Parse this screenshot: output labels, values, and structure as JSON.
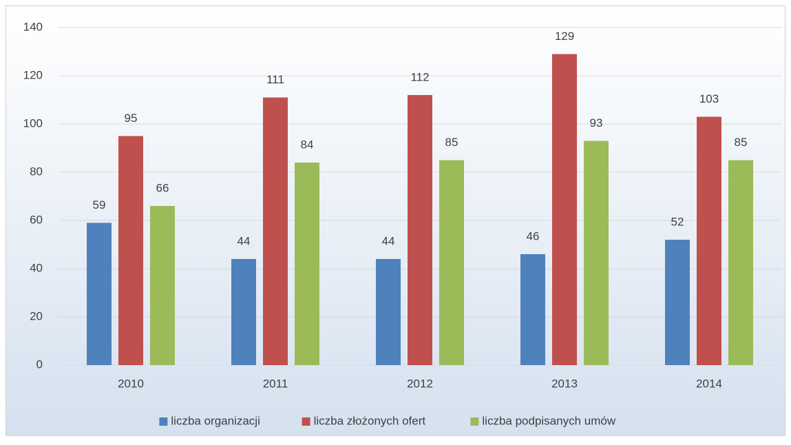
{
  "chart_data": {
    "type": "bar",
    "categories": [
      "2010",
      "2011",
      "2012",
      "2013",
      "2014"
    ],
    "series": [
      {
        "name": "liczba organizacji",
        "color": "#4f81bd",
        "values": [
          59,
          44,
          44,
          46,
          52
        ]
      },
      {
        "name": "liczba złożonych ofert",
        "color": "#c0504d",
        "values": [
          95,
          111,
          112,
          129,
          103
        ]
      },
      {
        "name": "liczba podpisanych umów",
        "color": "#9bbb59",
        "values": [
          66,
          84,
          85,
          93,
          85
        ]
      }
    ],
    "ylim": [
      0,
      140
    ],
    "yticks": [
      0,
      20,
      40,
      60,
      80,
      100,
      120,
      140
    ],
    "grid": true,
    "legend": "bottom"
  }
}
